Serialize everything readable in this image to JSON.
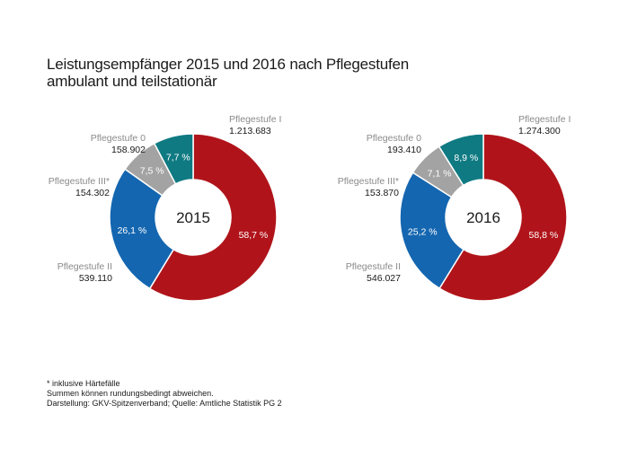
{
  "title": {
    "line1": "Leistungsempfänger 2015 und 2016 nach Pflegestufen",
    "line2": "ambulant und teilstationär"
  },
  "colors": {
    "Pflegestufe I": "#b0141a",
    "Pflegestufe II": "#1466b0",
    "Pflegestufe III*": "#a3a3a3",
    "Pflegestufe 0": "#0f7a82"
  },
  "chart_data": [
    {
      "type": "pie",
      "year": "2015",
      "slices": [
        {
          "name": "Pflegestufe I",
          "value": 1213683,
          "value_text": "1.213.683",
          "percent": 58.7,
          "percent_text": "58,7 %"
        },
        {
          "name": "Pflegestufe II",
          "value": 539110,
          "value_text": "539.110",
          "percent": 26.1,
          "percent_text": "26,1 %"
        },
        {
          "name": "Pflegestufe III*",
          "value": 154302,
          "value_text": "154.302",
          "percent": 7.5,
          "percent_text": "7,5 %"
        },
        {
          "name": "Pflegestufe 0",
          "value": 158902,
          "value_text": "158.902",
          "percent": 7.7,
          "percent_text": "7,7 %"
        }
      ]
    },
    {
      "type": "pie",
      "year": "2016",
      "slices": [
        {
          "name": "Pflegestufe I",
          "value": 1274300,
          "value_text": "1.274.300",
          "percent": 58.8,
          "percent_text": "58,8 %"
        },
        {
          "name": "Pflegestufe II",
          "value": 546027,
          "value_text": "546.027",
          "percent": 25.2,
          "percent_text": "25,2 %"
        },
        {
          "name": "Pflegestufe III*",
          "value": 153870,
          "value_text": "153.870",
          "percent": 7.1,
          "percent_text": "7,1 %"
        },
        {
          "name": "Pflegestufe 0",
          "value": 193410,
          "value_text": "193.410",
          "percent": 8.9,
          "percent_text": "8,9 %"
        }
      ]
    }
  ],
  "notes": {
    "line1": "* inklusive Härtefälle",
    "line2": "Summen können rundungsbedingt abweichen.",
    "line3": "Darstellung: GKV-Spitzenverband; Quelle: Amtliche Statistik PG 2"
  }
}
